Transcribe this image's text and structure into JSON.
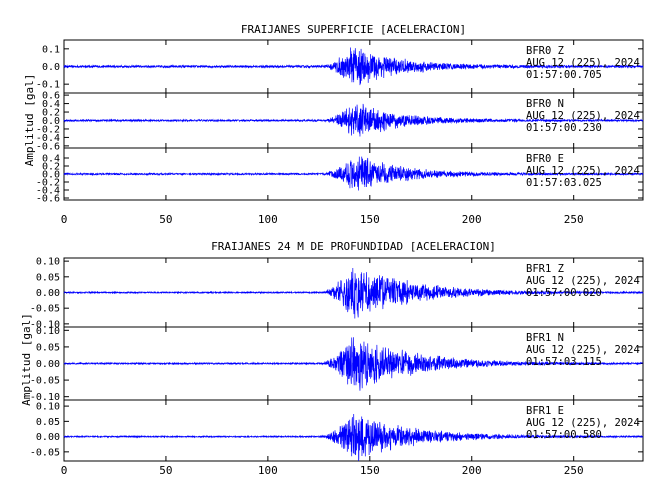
{
  "chart_data": [
    {
      "type": "line",
      "title": "FRAIJANES SUPERFICIE [ACELERACION]",
      "ylabel": "Amplitud [gal]",
      "xlim": [
        0,
        284
      ],
      "x_ticks": [
        "0",
        "50",
        "100",
        "150",
        "200",
        "250"
      ],
      "series": [
        {
          "name": "BFR0 Z",
          "station": "BFR0",
          "component": "Z",
          "date": "AUG 12 (225), 2024",
          "time": "01:57:00.705",
          "ylim": [
            -0.15,
            0.15
          ],
          "y_ticks": [
            "0.1",
            "0.0",
            "-0.1"
          ],
          "envelope": {
            "noise": 0.006,
            "peak": 0.13,
            "onset": 127,
            "peak_time": 142,
            "decay": 22
          },
          "color": "#0000ff"
        },
        {
          "name": "BFR0 N",
          "station": "BFR0",
          "component": "N",
          "date": "AUG 12 (225), 2024",
          "time": "01:57:00.230",
          "ylim": [
            -0.65,
            0.65
          ],
          "y_ticks": [
            "0.6",
            "0.4",
            "0.2",
            "0.0",
            "-0.2",
            "-0.4",
            "-0.6"
          ],
          "envelope": {
            "noise": 0.02,
            "peak": 0.48,
            "onset": 127,
            "peak_time": 143,
            "decay": 22
          },
          "color": "#0000ff"
        },
        {
          "name": "BFR0 E",
          "station": "BFR0",
          "component": "E",
          "date": "AUG 12 (225), 2024",
          "time": "01:57:03.025",
          "ylim": [
            -0.65,
            0.65
          ],
          "y_ticks": [
            "0.4",
            "0.2",
            "0.0",
            "-0.2",
            "-0.4",
            "-0.6"
          ],
          "envelope": {
            "noise": 0.02,
            "peak": 0.55,
            "onset": 127,
            "peak_time": 143,
            "decay": 22
          },
          "color": "#0000ff"
        }
      ]
    },
    {
      "type": "line",
      "title": "FRAIJANES 24 M DE PROFUNDIDAD [ACELERACION]",
      "ylabel": "Amplitud [gal]",
      "xlim": [
        0,
        284
      ],
      "x_ticks": [
        "0",
        "50",
        "100",
        "150",
        "200",
        "250"
      ],
      "series": [
        {
          "name": "BFR1 Z",
          "station": "BFR1",
          "component": "Z",
          "date": "AUG 12 (225), 2024",
          "time": "01:57:00.020",
          "ylim": [
            -0.11,
            0.11
          ],
          "y_ticks": [
            "0.10",
            "0.05",
            "0.00",
            "-0.05",
            "-0.10"
          ],
          "envelope": {
            "noise": 0.002,
            "peak": 0.1,
            "onset": 126,
            "peak_time": 142,
            "decay": 28
          },
          "color": "#0000ff"
        },
        {
          "name": "BFR1 N",
          "station": "BFR1",
          "component": "N",
          "date": "AUG 12 (225), 2024",
          "time": "01:57:03.115",
          "ylim": [
            -0.11,
            0.11
          ],
          "y_ticks": [
            "0.10",
            "0.05",
            "0.00",
            "-0.05",
            "-0.10"
          ],
          "envelope": {
            "noise": 0.002,
            "peak": 0.1,
            "onset": 126,
            "peak_time": 142,
            "decay": 28
          },
          "color": "#0000ff"
        },
        {
          "name": "BFR1 E",
          "station": "BFR1",
          "component": "E",
          "date": "AUG 12 (225), 2024",
          "time": "01:57:00.580",
          "ylim": [
            -0.08,
            0.12
          ],
          "y_ticks": [
            "0.10",
            "0.05",
            "0.00",
            "-0.05"
          ],
          "envelope": {
            "noise": 0.002,
            "peak": 0.09,
            "onset": 126,
            "peak_time": 142,
            "decay": 28
          },
          "color": "#0000ff"
        }
      ]
    }
  ]
}
